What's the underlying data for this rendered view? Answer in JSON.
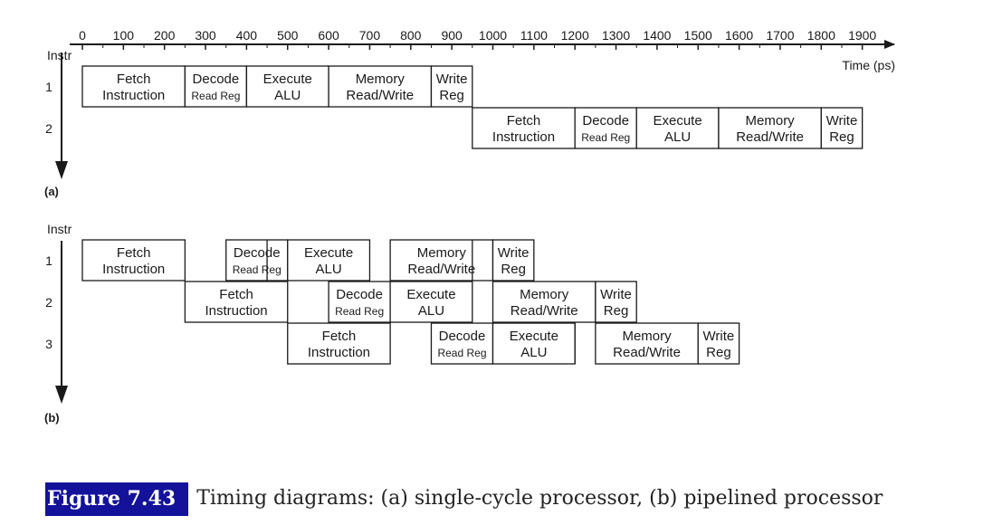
{
  "axis": {
    "ticks": [
      "0",
      "100",
      "200",
      "300",
      "400",
      "500",
      "600",
      "700",
      "800",
      "900",
      "1000",
      "1100",
      "1200",
      "1300",
      "1400",
      "1500",
      "1600",
      "1700",
      "1800",
      "1900"
    ],
    "unit_label": "Time (ps)"
  },
  "panel_a": {
    "instr_label": "Instr",
    "panel_label": "(a)",
    "rows": [
      {
        "label": "1",
        "stages": [
          {
            "start": 0,
            "end": 250,
            "lines": [
              "Fetch",
              "Instruction"
            ]
          },
          {
            "start": 250,
            "end": 400,
            "lines": [
              "Decode",
              "Read Reg"
            ],
            "small2": true
          },
          {
            "start": 400,
            "end": 600,
            "lines": [
              "Execute",
              "ALU"
            ]
          },
          {
            "start": 600,
            "end": 850,
            "lines": [
              "Memory",
              "Read/Write"
            ]
          },
          {
            "start": 850,
            "end": 950,
            "lines": [
              "Write",
              "Reg"
            ]
          }
        ]
      },
      {
        "label": "2",
        "stages": [
          {
            "start": 950,
            "end": 1200,
            "lines": [
              "Fetch",
              "Instruction"
            ]
          },
          {
            "start": 1200,
            "end": 1350,
            "lines": [
              "Decode",
              "Read Reg"
            ],
            "small2": true
          },
          {
            "start": 1350,
            "end": 1550,
            "lines": [
              "Execute",
              "ALU"
            ]
          },
          {
            "start": 1550,
            "end": 1800,
            "lines": [
              "Memory",
              "Read/Write"
            ]
          },
          {
            "start": 1800,
            "end": 1900,
            "lines": [
              "Write",
              "Reg"
            ]
          }
        ]
      }
    ]
  },
  "panel_b": {
    "instr_label": "Instr",
    "panel_label": "(b)",
    "rows": [
      {
        "label": "1",
        "stages": [
          {
            "start": 0,
            "end": 250,
            "lines": [
              "Fetch",
              "Instruction"
            ]
          },
          {
            "start": 350,
            "end": 500,
            "lines": [
              "Decode",
              "Read Reg"
            ],
            "small2": true
          },
          {
            "start": 500,
            "end": 700,
            "lines": [
              "Execute",
              "ALU"
            ]
          },
          {
            "start": 750,
            "end": 1000,
            "lines": [
              "Memory",
              "Read/Write"
            ]
          },
          {
            "start": 1000,
            "end": 1100,
            "lines": [
              "Write",
              "Reg"
            ]
          }
        ]
      },
      {
        "label": "2",
        "stages": [
          {
            "start": 250,
            "end": 500,
            "lines": [
              "Fetch",
              "Instruction"
            ]
          },
          {
            "start": 600,
            "end": 750,
            "lines": [
              "Decode",
              "Read Reg"
            ],
            "small2": true
          },
          {
            "start": 750,
            "end": 950,
            "lines": [
              "Execute",
              "ALU"
            ]
          },
          {
            "start": 1000,
            "end": 1250,
            "lines": [
              "Memory",
              "Read/Write"
            ]
          },
          {
            "start": 1250,
            "end": 1350,
            "lines": [
              "Write",
              "Reg"
            ]
          }
        ]
      },
      {
        "label": "3",
        "stages": [
          {
            "start": 500,
            "end": 750,
            "lines": [
              "Fetch",
              "Instruction"
            ]
          },
          {
            "start": 850,
            "end": 1000,
            "lines": [
              "Decode",
              "Read Reg"
            ],
            "small2": true
          },
          {
            "start": 1000,
            "end": 1200,
            "lines": [
              "Execute",
              "ALU"
            ]
          },
          {
            "start": 1250,
            "end": 1500,
            "lines": [
              "Memory",
              "Read/Write"
            ]
          },
          {
            "start": 1500,
            "end": 1600,
            "lines": [
              "Write",
              "Reg"
            ]
          }
        ]
      }
    ],
    "extra_lines": [
      {
        "x": 450,
        "row": 0
      },
      {
        "x": 950,
        "row": 0
      },
      {
        "x": 1200,
        "row": 2
      }
    ]
  },
  "caption": {
    "figure_label": "Figure 7.43",
    "text": "Timing diagrams: (a) single-cycle processor, (b) pipelined processor"
  }
}
